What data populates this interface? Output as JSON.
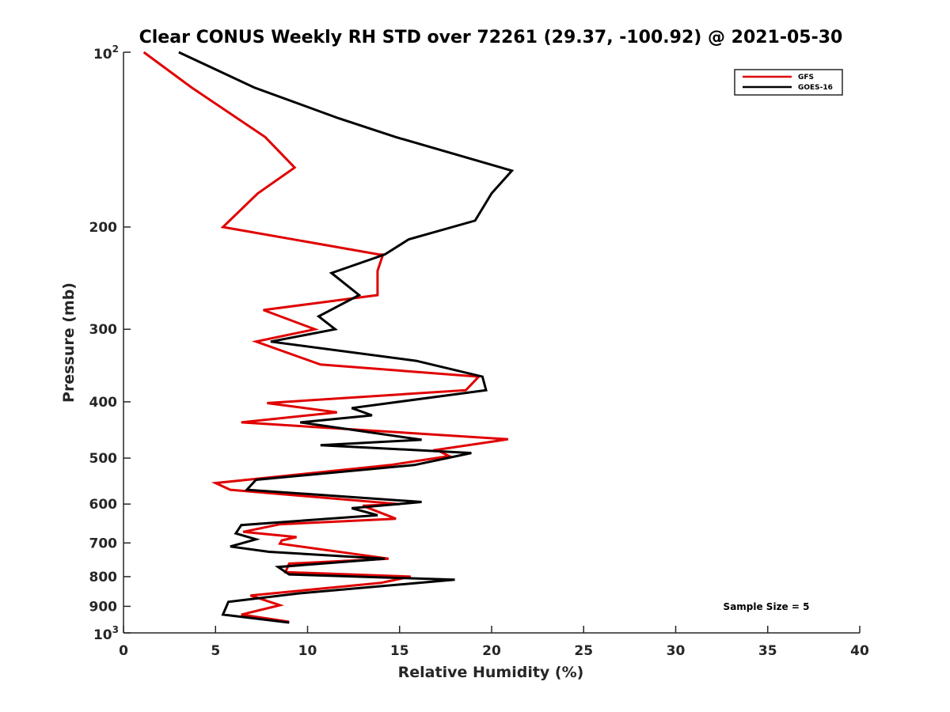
{
  "chart_data": {
    "type": "line",
    "title": "Clear CONUS Weekly RH STD over 72261 (29.37, -100.92) @ 2021-05-30",
    "xlabel": "Relative Humidity (%)",
    "ylabel": "Pressure (mb)",
    "xlim": [
      0,
      40
    ],
    "ylim": [
      1000,
      100
    ],
    "y_scale": "log",
    "y_reversed": true,
    "grid": false,
    "legend_placement": "top-right",
    "x_ticks": [
      0,
      5,
      10,
      15,
      20,
      25,
      30,
      35,
      40
    ],
    "y_ticks": [
      {
        "value": 100,
        "base": "10",
        "exp": "2"
      },
      {
        "value": 200,
        "label": "200"
      },
      {
        "value": 300,
        "label": "300"
      },
      {
        "value": 400,
        "label": "400"
      },
      {
        "value": 500,
        "label": "500"
      },
      {
        "value": 600,
        "label": "600"
      },
      {
        "value": 700,
        "label": "700"
      },
      {
        "value": 800,
        "label": "800"
      },
      {
        "value": 900,
        "label": "900"
      },
      {
        "value": 1000,
        "base": "10",
        "exp": "3"
      }
    ],
    "annotation": "Sample Size = 5",
    "series": [
      {
        "name": "GFS",
        "color": "#e00000",
        "points": [
          [
            1.1,
            100
          ],
          [
            3.7,
            115
          ],
          [
            7.7,
            140
          ],
          [
            9.3,
            158
          ],
          [
            7.3,
            175
          ],
          [
            5.4,
            200
          ],
          [
            13.9,
            223
          ],
          [
            14.1,
            223
          ],
          [
            13.8,
            238
          ],
          [
            13.8,
            262
          ],
          [
            7.6,
            278
          ],
          [
            10.4,
            300
          ],
          [
            7.2,
            315
          ],
          [
            10.7,
            345
          ],
          [
            19.3,
            362
          ],
          [
            18.6,
            382
          ],
          [
            7.8,
            402
          ],
          [
            11.6,
            417
          ],
          [
            6.4,
            434
          ],
          [
            20.9,
            464
          ],
          [
            17.0,
            484
          ],
          [
            17.7,
            496
          ],
          [
            14.5,
            514
          ],
          [
            5.0,
            552
          ],
          [
            5.8,
            567
          ],
          [
            15.0,
            600
          ],
          [
            13.0,
            604
          ],
          [
            14.8,
            636
          ],
          [
            8.5,
            650
          ],
          [
            6.5,
            670
          ],
          [
            9.4,
            684
          ],
          [
            8.6,
            693
          ],
          [
            8.5,
            702
          ],
          [
            14.4,
            745
          ],
          [
            9.0,
            760
          ],
          [
            8.8,
            786
          ],
          [
            15.6,
            800
          ],
          [
            14.0,
            820
          ],
          [
            6.9,
            862
          ],
          [
            8.5,
            896
          ],
          [
            6.4,
            930
          ],
          [
            9.0,
            957
          ]
        ]
      },
      {
        "name": "GOES-16",
        "color": "#000000",
        "points": [
          [
            3.0,
            100
          ],
          [
            7.1,
            115
          ],
          [
            11.7,
            130
          ],
          [
            14.8,
            140
          ],
          [
            21.1,
            160
          ],
          [
            20.0,
            175
          ],
          [
            19.1,
            195
          ],
          [
            15.5,
            210
          ],
          [
            14.2,
            223
          ],
          [
            11.3,
            240
          ],
          [
            12.8,
            262
          ],
          [
            10.6,
            285
          ],
          [
            11.5,
            300
          ],
          [
            8.0,
            315
          ],
          [
            15.9,
            340
          ],
          [
            19.5,
            362
          ],
          [
            19.7,
            382
          ],
          [
            12.4,
            410
          ],
          [
            13.5,
            422
          ],
          [
            9.6,
            434
          ],
          [
            16.2,
            465
          ],
          [
            10.7,
            475
          ],
          [
            18.9,
            490
          ],
          [
            15.8,
            514
          ],
          [
            7.2,
            545
          ],
          [
            6.7,
            567
          ],
          [
            16.2,
            595
          ],
          [
            12.4,
            610
          ],
          [
            13.8,
            627
          ],
          [
            6.4,
            652
          ],
          [
            6.1,
            674
          ],
          [
            7.2,
            690
          ],
          [
            5.8,
            710
          ],
          [
            7.9,
            725
          ],
          [
            14.2,
            745
          ],
          [
            8.4,
            770
          ],
          [
            9.0,
            793
          ],
          [
            18.0,
            810
          ],
          [
            9.5,
            855
          ],
          [
            5.7,
            884
          ],
          [
            5.4,
            930
          ],
          [
            9.0,
            960
          ]
        ]
      }
    ]
  }
}
